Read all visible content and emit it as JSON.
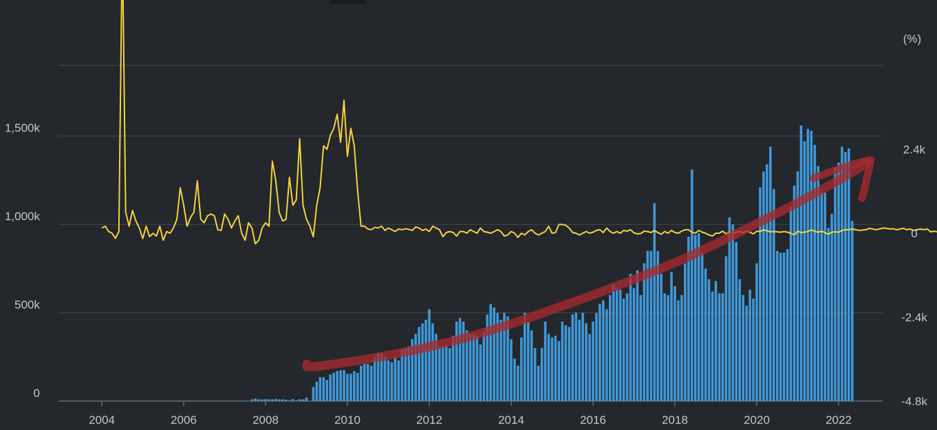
{
  "colors": {
    "background": "#24272c",
    "grid": "#474b52",
    "axis": "#666a70",
    "text": "#c4c7cc",
    "bars": "#3f99da",
    "line": "#f5d33c",
    "annotation": "#a52a30"
  },
  "chart_data": {
    "type": "bar",
    "title": "",
    "xlabel": "",
    "ylabel": "",
    "right_axis_unit": "(%)",
    "x_ticks": [
      "2004",
      "2006",
      "2008",
      "2010",
      "2012",
      "2014",
      "2016",
      "2018",
      "2020",
      "2022"
    ],
    "y_left_ticks": [
      "0",
      "500k",
      "1,000k",
      "1,500k"
    ],
    "y_left_range": [
      0,
      1900000
    ],
    "y_right_ticks": [
      "-4.8k",
      "-2.4k",
      "0",
      "2.4k"
    ],
    "y_right_range": [
      -4800,
      4800
    ],
    "x_range": [
      "2003-01",
      "2023-01"
    ],
    "grid": true,
    "legend": "none",
    "series": [
      {
        "axis": "left",
        "type": "bar",
        "start": "2007-09",
        "interval": "month",
        "values": [
          10000,
          15000,
          10000,
          10000,
          12000,
          10000,
          10000,
          12000,
          10000,
          10000,
          8000,
          5000,
          12000,
          5000,
          10000,
          10000,
          20000,
          0,
          80000,
          110000,
          135000,
          135000,
          120000,
          150000,
          160000,
          170000,
          175000,
          175000,
          155000,
          155000,
          170000,
          160000,
          200000,
          210000,
          210000,
          200000,
          250000,
          270000,
          270000,
          250000,
          230000,
          220000,
          250000,
          230000,
          290000,
          300000,
          310000,
          350000,
          380000,
          420000,
          440000,
          460000,
          520000,
          440000,
          380000,
          310000,
          310000,
          320000,
          300000,
          370000,
          450000,
          470000,
          450000,
          400000,
          380000,
          380000,
          370000,
          320000,
          390000,
          490000,
          550000,
          530000,
          500000,
          460000,
          500000,
          480000,
          350000,
          240000,
          200000,
          360000,
          500000,
          450000,
          400000,
          300000,
          200000,
          300000,
          450000,
          380000,
          360000,
          370000,
          340000,
          450000,
          430000,
          420000,
          490000,
          500000,
          460000,
          500000,
          440000,
          380000,
          450000,
          500000,
          550000,
          570000,
          520000,
          600000,
          660000,
          640000,
          630000,
          580000,
          610000,
          720000,
          640000,
          740000,
          600000,
          780000,
          850000,
          850000,
          1120000,
          850000,
          720000,
          610000,
          600000,
          730000,
          650000,
          570000,
          600000,
          780000,
          930000,
          1310000,
          940000,
          950000,
          840000,
          750000,
          690000,
          620000,
          680000,
          610000,
          610000,
          820000,
          1040000,
          1000000,
          900000,
          690000,
          600000,
          540000,
          630000,
          580000,
          780000,
          1210000,
          1300000,
          1340000,
          1440000,
          1200000,
          850000,
          840000,
          840000,
          860000,
          1100000,
          1220000,
          1300000,
          1560000,
          1470000,
          1540000,
          1530000,
          1450000,
          1330000,
          1180000,
          1180000,
          980000,
          1060000,
          1320000,
          1350000,
          1440000,
          1410000,
          1430000,
          1020000
        ]
      },
      {
        "axis": "right",
        "type": "line",
        "start": "2004-01",
        "interval": "month",
        "values": [
          150,
          200,
          50,
          0,
          -150,
          50,
          8400,
          600,
          200,
          650,
          350,
          150,
          -150,
          200,
          -100,
          0,
          -80,
          200,
          -200,
          50,
          0,
          150,
          400,
          1300,
          800,
          200,
          450,
          600,
          1500,
          400,
          300,
          500,
          550,
          500,
          100,
          80,
          550,
          400,
          150,
          350,
          500,
          0,
          -200,
          300,
          150,
          -300,
          -200,
          150,
          300,
          200,
          2060,
          1500,
          600,
          350,
          400,
          1600,
          800,
          950,
          2700,
          800,
          400,
          200,
          -100,
          800,
          1300,
          2500,
          2400,
          2800,
          3000,
          3400,
          2600,
          3800,
          2200,
          3000,
          2500,
          1200,
          200,
          200,
          120,
          100,
          170,
          150,
          200,
          80,
          150,
          100,
          50,
          120,
          100,
          130,
          110,
          80,
          180,
          150,
          80,
          120,
          50,
          200,
          150,
          100,
          -100,
          20,
          50,
          20,
          -80,
          50,
          50,
          0,
          100,
          50,
          0,
          150,
          50,
          30,
          0,
          50,
          100,
          50,
          -80,
          -50,
          50,
          0,
          -120,
          0,
          -50,
          50,
          100,
          0,
          -50,
          0,
          50,
          200,
          0,
          20,
          250,
          250,
          230,
          150,
          20,
          0,
          -50,
          0,
          50,
          0,
          30,
          80,
          100,
          20,
          150,
          50,
          0,
          50,
          0,
          80,
          60,
          100,
          10,
          -20,
          -10,
          60,
          50,
          20,
          80,
          20,
          -30,
          50,
          0,
          80,
          20,
          0,
          60,
          100,
          100,
          30,
          0,
          80,
          30,
          0,
          -50,
          -80,
          0,
          0,
          60,
          -20,
          30,
          -10,
          30,
          50,
          20,
          60,
          30,
          -20,
          60,
          50,
          100,
          70,
          40,
          50,
          40,
          30,
          50,
          30,
          0,
          -50,
          60,
          20,
          30,
          50,
          100,
          50,
          30,
          60,
          20,
          -30,
          30,
          40,
          30,
          80,
          100,
          100,
          120,
          100,
          80,
          90,
          100,
          140,
          120,
          100,
          120,
          150,
          140,
          120,
          130,
          100,
          120,
          140,
          100,
          120,
          80,
          100,
          120,
          100,
          120,
          40,
          60,
          40,
          30,
          30,
          20
        ]
      }
    ]
  }
}
